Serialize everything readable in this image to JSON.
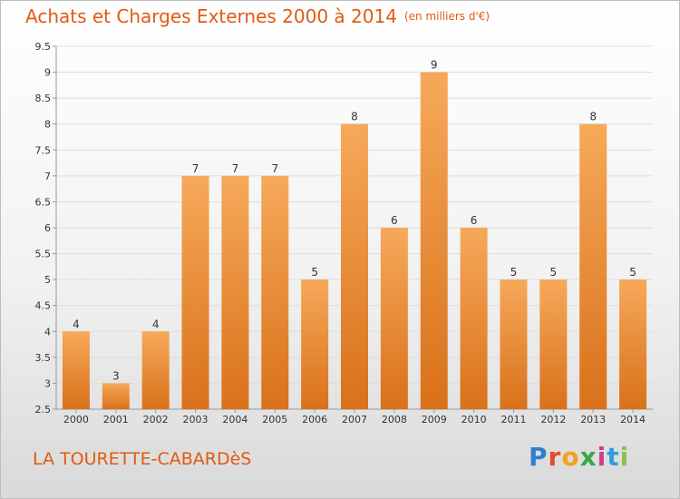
{
  "header": {
    "title": "Achats et Charges Externes 2000 à 2014",
    "unit": "(en milliers d'€)"
  },
  "footer": {
    "commune": "LA TOURETTE-CABARDèS",
    "brand": "Proxiti",
    "brand_letters": [
      "P",
      "r",
      "o",
      "x",
      "i",
      "t",
      "i"
    ]
  },
  "colors": {
    "bar_top": "#f6a95a",
    "bar_bottom": "#d9711a",
    "text_accent": "#e05a10",
    "grid": "#dddddd",
    "axis_text": "#333333"
  },
  "chart_data": {
    "type": "bar",
    "title": "Achats et Charges Externes 2000 à 2014",
    "subtitle": "(en milliers d'€)",
    "xlabel": "",
    "ylabel": "",
    "categories": [
      "2000",
      "2001",
      "2002",
      "2003",
      "2004",
      "2005",
      "2006",
      "2007",
      "2008",
      "2009",
      "2010",
      "2011",
      "2012",
      "2013",
      "2014"
    ],
    "values": [
      4,
      3,
      4,
      7,
      7,
      7,
      5,
      8,
      6,
      9,
      6,
      5,
      5,
      8,
      5
    ],
    "ylim": [
      2.5,
      9.5
    ],
    "yticks": [
      "2.5",
      "3",
      "3.5",
      "4",
      "4.5",
      "5",
      "5.5",
      "6",
      "6.5",
      "7",
      "7.5",
      "8",
      "8.5",
      "9",
      "9.5"
    ],
    "grid": true,
    "legend": "none"
  }
}
